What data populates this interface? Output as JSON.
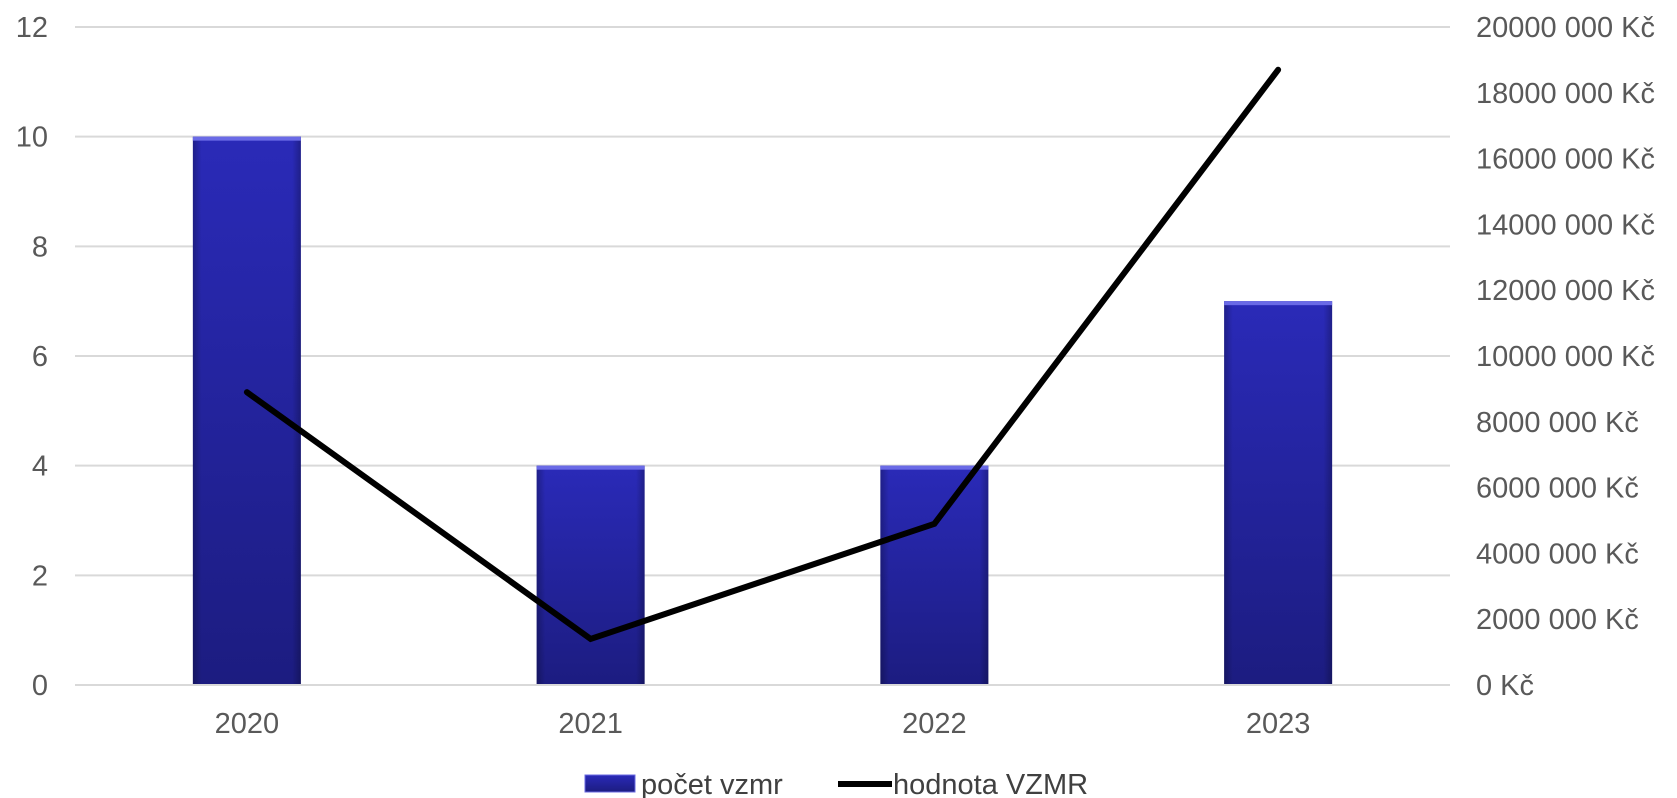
{
  "chart_data": {
    "type": "bar",
    "categories": [
      "2020",
      "2021",
      "2022",
      "2023"
    ],
    "series": [
      {
        "name": "počet vzmr",
        "type": "bar",
        "axis": "left",
        "values": [
          10,
          4,
          4,
          7
        ]
      },
      {
        "name": "hodnota VZMR",
        "type": "line",
        "axis": "right",
        "values": [
          8900000,
          1400000,
          4900000,
          18700000
        ]
      }
    ],
    "y_left": {
      "min": 0,
      "max": 12,
      "step": 2,
      "tick_labels": [
        "0",
        "2",
        "4",
        "6",
        "8",
        "10",
        "12"
      ]
    },
    "y_right": {
      "min": 0,
      "max": 20000000,
      "step": 2000000,
      "tick_labels": [
        "0 Kč",
        "2000 000 Kč",
        "4000 000 Kč",
        "6000 000 Kč",
        "8000 000 Kč",
        "10000 000 Kč",
        "12000 000 Kč",
        "14000 000 Kč",
        "16000 000 Kč",
        "18000 000 Kč",
        "20000 000 Kč"
      ]
    },
    "grid": true,
    "legend_position": "bottom",
    "colors": {
      "bar": "#2626b0",
      "bar_dark": "#1c1c80",
      "line": "#000000",
      "grid": "#d9d9d9",
      "text": "#595959"
    }
  }
}
